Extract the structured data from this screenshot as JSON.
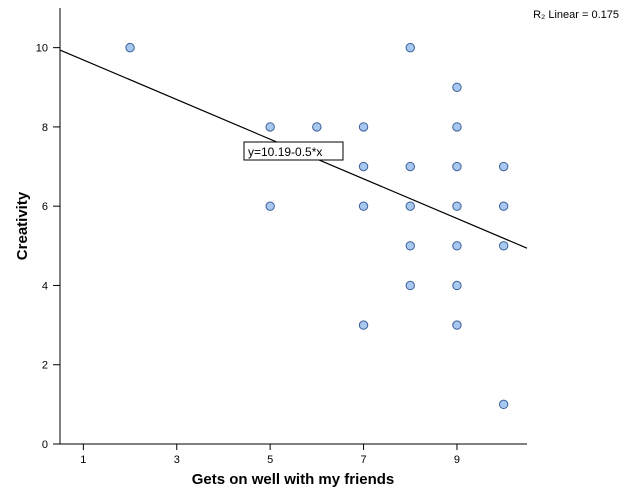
{
  "chart_data": {
    "type": "scatter",
    "xlabel": "Gets on well with my friends",
    "ylabel": "Creativity",
    "xlim": [
      0.5,
      10.5
    ],
    "ylim": [
      0,
      11
    ],
    "x_ticks": [
      1,
      3,
      5,
      7,
      9
    ],
    "y_ticks": [
      0,
      2,
      4,
      6,
      8,
      10
    ],
    "points": [
      {
        "x": 2,
        "y": 10
      },
      {
        "x": 5,
        "y": 8
      },
      {
        "x": 5,
        "y": 6
      },
      {
        "x": 6,
        "y": 8
      },
      {
        "x": 7,
        "y": 8
      },
      {
        "x": 7,
        "y": 7
      },
      {
        "x": 7,
        "y": 6
      },
      {
        "x": 7,
        "y": 3
      },
      {
        "x": 8,
        "y": 10
      },
      {
        "x": 8,
        "y": 7
      },
      {
        "x": 8,
        "y": 6
      },
      {
        "x": 8,
        "y": 5
      },
      {
        "x": 8,
        "y": 4
      },
      {
        "x": 9,
        "y": 9
      },
      {
        "x": 9,
        "y": 8
      },
      {
        "x": 9,
        "y": 7
      },
      {
        "x": 9,
        "y": 6
      },
      {
        "x": 9,
        "y": 5
      },
      {
        "x": 9,
        "y": 4
      },
      {
        "x": 9,
        "y": 3
      },
      {
        "x": 10,
        "y": 7
      },
      {
        "x": 10,
        "y": 6
      },
      {
        "x": 10,
        "y": 5
      },
      {
        "x": 10,
        "y": 1
      }
    ],
    "fit_line": {
      "intercept": 10.19,
      "slope": -0.5,
      "x_range": [
        0.5,
        10.5
      ]
    },
    "equation_label": "y=10.19-0.5*x",
    "r2_label": "R₂ Linear = 0.175",
    "marker_fill": "#a8c8f0",
    "marker_stroke": "#3a5f9a"
  }
}
